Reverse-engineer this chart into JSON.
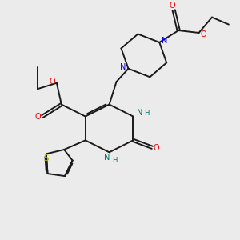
{
  "bg_color": "#ebebeb",
  "bond_color": "#1a1a1a",
  "N_color": "#0000ee",
  "O_color": "#ee0000",
  "S_color": "#b8b800",
  "NH_color": "#007070",
  "figsize": [
    3.0,
    3.0
  ],
  "dpi": 100,
  "lw": 1.4,
  "fs": 7.0,
  "xlim": [
    0,
    10
  ],
  "ylim": [
    0,
    10
  ]
}
